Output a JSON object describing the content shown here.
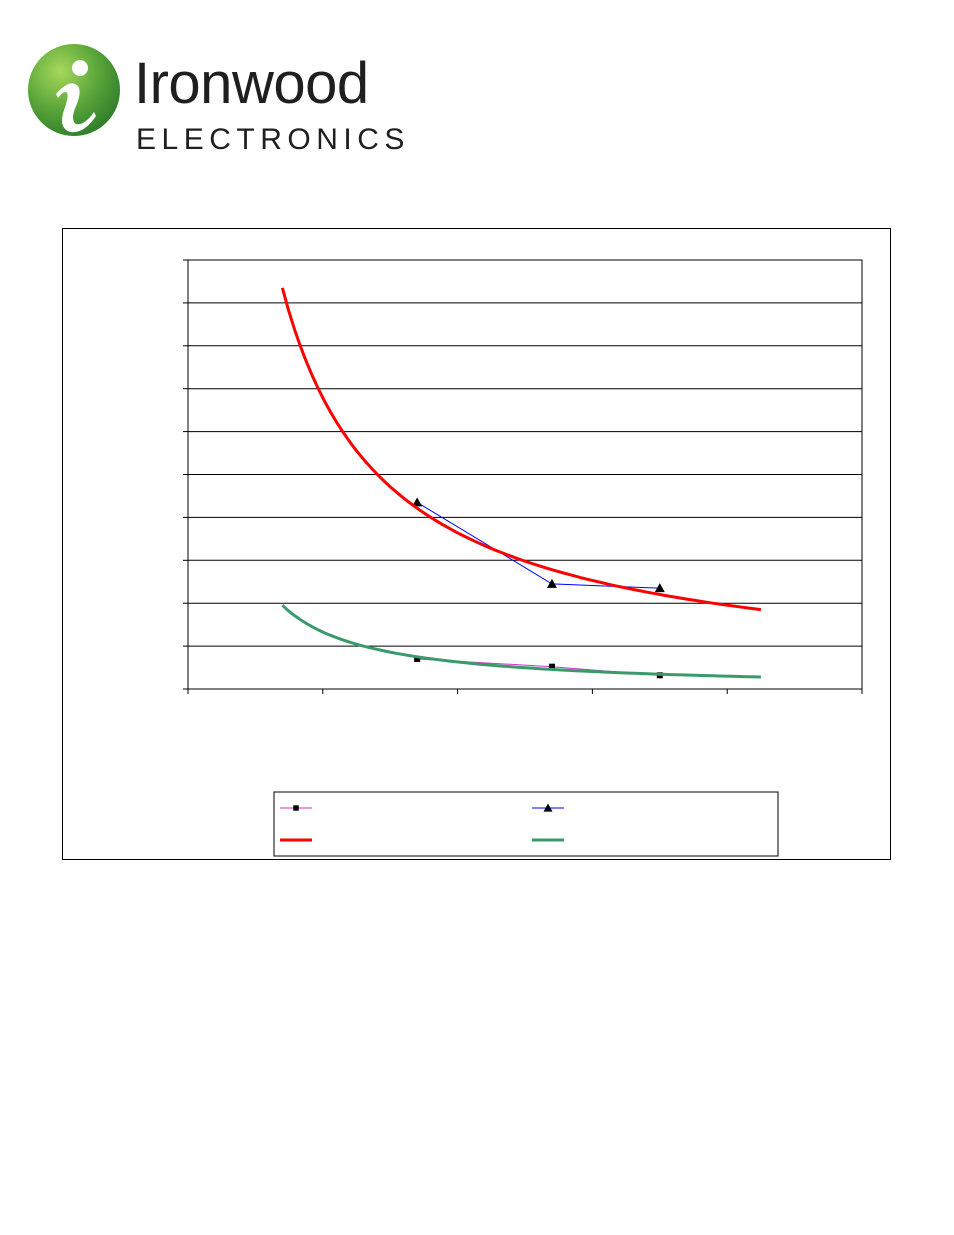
{
  "logo": {
    "name_line1": "Ironwood",
    "name_line2": "ELECTRONICS",
    "mark_letter": "i",
    "colors": {
      "badge_dark": "#2f7d2a",
      "badge_light": "#8cc63f",
      "text": "#1f1f1f"
    }
  },
  "chart_data": {
    "type": "line",
    "title": "",
    "xlabel": "",
    "ylabel": "",
    "xlim": [
      0,
      5
    ],
    "ylim": [
      0,
      10
    ],
    "grid": "horizontal",
    "legend_position": "bottom-center",
    "tick_labels_visible": false,
    "series": [
      {
        "key": "s1",
        "marker": "square",
        "color": "#cc33cc",
        "x": [
          1.7,
          2.7,
          3.5
        ],
        "y": [
          0.7,
          0.52,
          0.32
        ]
      },
      {
        "key": "s2",
        "marker": "triangle",
        "color": "#0000ff",
        "x": [
          1.7,
          2.7,
          3.5
        ],
        "y": [
          4.35,
          2.45,
          2.35
        ]
      },
      {
        "key": "fit1",
        "marker": "none",
        "color": "#ff0000",
        "fit": "power",
        "x_range": [
          0.7,
          4.25
        ],
        "y_at_ends": [
          9.35,
          1.85
        ]
      },
      {
        "key": "fit2",
        "marker": "none",
        "color": "#3a9a6a",
        "fit": "power",
        "x_range": [
          0.7,
          4.25
        ],
        "y_at_ends": [
          1.95,
          0.28
        ]
      }
    ]
  }
}
